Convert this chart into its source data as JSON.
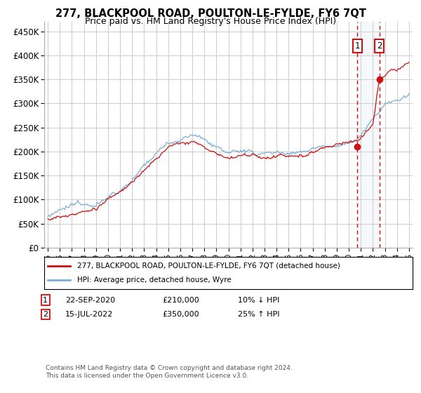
{
  "title": "277, BLACKPOOL ROAD, POULTON-LE-FYLDE, FY6 7QT",
  "subtitle": "Price paid vs. HM Land Registry's House Price Index (HPI)",
  "legend_line1": "277, BLACKPOOL ROAD, POULTON-LE-FYLDE, FY6 7QT (detached house)",
  "legend_line2": "HPI: Average price, detached house, Wyre",
  "annotation1_date": "22-SEP-2020",
  "annotation1_price": "£210,000",
  "annotation1_hpi": "10% ↓ HPI",
  "annotation2_date": "15-JUL-2022",
  "annotation2_price": "£350,000",
  "annotation2_hpi": "25% ↑ HPI",
  "footer": "Contains HM Land Registry data © Crown copyright and database right 2024.\nThis data is licensed under the Open Government Licence v3.0.",
  "hpi_color": "#7aaed4",
  "price_color": "#cc1111",
  "highlight_color": "#ddeeff",
  "annotation_color": "#cc1111",
  "ylim": [
    0,
    470000
  ],
  "yticks": [
    0,
    50000,
    100000,
    150000,
    200000,
    250000,
    300000,
    350000,
    400000,
    450000
  ],
  "ytick_labels": [
    "£0",
    "£50K",
    "£100K",
    "£150K",
    "£200K",
    "£250K",
    "£300K",
    "£350K",
    "£400K",
    "£450K"
  ],
  "sale1_x": 2020.72,
  "sale1_y": 210000,
  "sale2_x": 2022.54,
  "sale2_y": 350000,
  "xlim_left": 1994.7,
  "xlim_right": 2025.3
}
